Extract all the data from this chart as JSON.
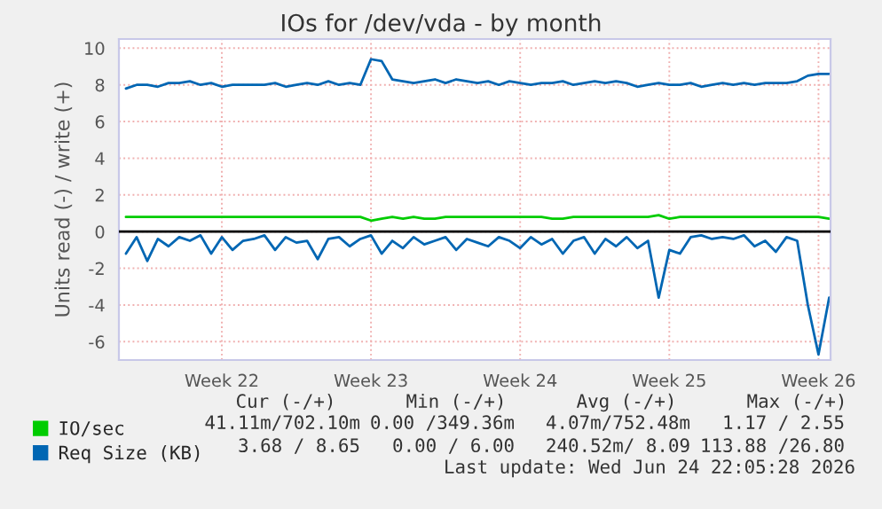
{
  "chart_data": {
    "type": "line",
    "title": "IOs for /dev/vda - by month",
    "ylabel": "Units read (-) / write (+)",
    "categories": [
      null,
      null,
      null,
      null,
      null,
      null,
      null,
      null,
      null,
      "Week 22",
      null,
      null,
      null,
      null,
      null,
      null,
      null,
      null,
      null,
      null,
      null,
      null,
      null,
      "Week 23",
      null,
      null,
      null,
      null,
      null,
      null,
      null,
      null,
      null,
      null,
      null,
      null,
      null,
      "Week 24",
      null,
      null,
      null,
      null,
      null,
      null,
      null,
      null,
      null,
      null,
      null,
      null,
      null,
      "Week 25",
      null,
      null,
      null,
      null,
      null,
      null,
      null,
      null,
      null,
      null,
      null,
      null,
      null,
      "Week 26",
      null
    ],
    "ylim": [
      -7,
      10.5
    ],
    "yticks": [
      -6,
      -4,
      -2,
      0,
      2,
      4,
      6,
      8,
      10
    ],
    "grid": true,
    "legend": "bottom",
    "series": [
      {
        "name": "IO/sec",
        "color": "#00cc00",
        "values": [
          0.8,
          0.8,
          0.8,
          0.8,
          0.8,
          0.8,
          0.8,
          0.8,
          0.8,
          0.8,
          0.8,
          0.8,
          0.8,
          0.8,
          0.8,
          0.8,
          0.8,
          0.8,
          0.8,
          0.8,
          0.8,
          0.8,
          0.8,
          0.6,
          0.7,
          0.8,
          0.7,
          0.8,
          0.7,
          0.7,
          0.8,
          0.8,
          0.8,
          0.8,
          0.8,
          0.8,
          0.8,
          0.8,
          0.8,
          0.8,
          0.7,
          0.7,
          0.8,
          0.8,
          0.8,
          0.8,
          0.8,
          0.8,
          0.8,
          0.8,
          0.9,
          0.7,
          0.8,
          0.8,
          0.8,
          0.8,
          0.8,
          0.8,
          0.8,
          0.8,
          0.8,
          0.8,
          0.8,
          0.8,
          0.8,
          0.8,
          0.7
        ]
      },
      {
        "name": "Req Size (KB)",
        "color": "#0066b3",
        "values": [
          7.8,
          8.0,
          8.0,
          7.9,
          8.1,
          8.1,
          8.2,
          8.0,
          8.1,
          7.9,
          8.0,
          8.0,
          8.0,
          8.0,
          8.1,
          7.9,
          8.0,
          8.1,
          8.0,
          8.2,
          8.0,
          8.1,
          8.0,
          9.4,
          9.3,
          8.3,
          8.2,
          8.1,
          8.2,
          8.3,
          8.1,
          8.3,
          8.2,
          8.1,
          8.2,
          8.0,
          8.2,
          8.1,
          8.0,
          8.1,
          8.1,
          8.2,
          8.0,
          8.1,
          8.2,
          8.1,
          8.2,
          8.1,
          7.9,
          8.0,
          8.1,
          8.0,
          8.0,
          8.1,
          7.9,
          8.0,
          8.1,
          8.0,
          8.1,
          8.0,
          8.1,
          8.1,
          8.1,
          8.2,
          8.5,
          8.6,
          8.6
        ]
      },
      {
        "color": "#0066b3",
        "values": [
          -1.2,
          -0.3,
          -1.6,
          -0.4,
          -0.8,
          -0.3,
          -0.5,
          -0.2,
          -1.2,
          -0.3,
          -1.0,
          -0.5,
          -0.4,
          -0.2,
          -1.0,
          -0.3,
          -0.6,
          -0.5,
          -1.5,
          -0.4,
          -0.3,
          -0.8,
          -0.4,
          -0.2,
          -1.2,
          -0.5,
          -0.9,
          -0.3,
          -0.7,
          -0.5,
          -0.3,
          -1.0,
          -0.4,
          -0.6,
          -0.8,
          -0.3,
          -0.5,
          -0.9,
          -0.3,
          -0.7,
          -0.4,
          -1.2,
          -0.5,
          -0.3,
          -1.2,
          -0.4,
          -0.8,
          -0.3,
          -0.9,
          -0.5,
          -3.6,
          -1.0,
          -1.2,
          -0.3,
          -0.2,
          -0.4,
          -0.3,
          -0.4,
          -0.2,
          -0.8,
          -0.5,
          -1.1,
          -0.3,
          -0.5,
          -4.0,
          -6.7,
          -3.6
        ]
      }
    ],
    "ref_lines": [
      {
        "axis": "y",
        "value": 0,
        "color": "#000000"
      }
    ],
    "annotations": [
      "Cur (-/+)",
      "Min (-/+)",
      "Avg (-/+)",
      "Max (-/+)",
      "41.11m/702.10m",
      "0.00 /349.36m",
      "4.07m/752.48m",
      "1.17 / 2.55",
      "3.68 / 8.65",
      "0.00 / 6.00",
      "240.52m/ 8.09",
      "113.88 /26.80",
      "Last update: Wed Jun 24 22:05:28 2026"
    ]
  }
}
